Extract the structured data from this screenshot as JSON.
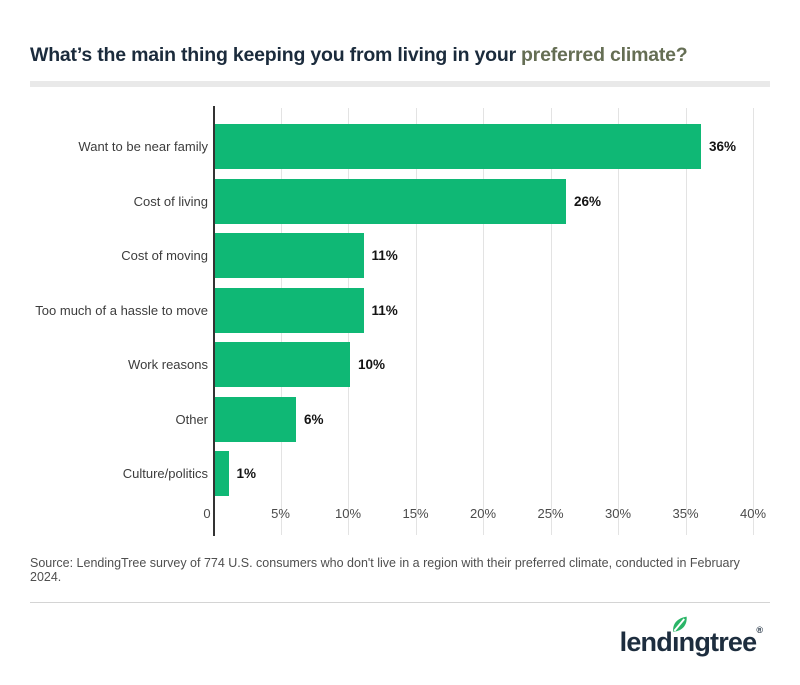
{
  "title": {
    "main": "What’s the main thing keeping you from living in your",
    "highlight": "preferred climate?"
  },
  "chart_data": {
    "type": "bar",
    "orientation": "horizontal",
    "title": "What’s the main thing keeping you from living in your preferred climate?",
    "categories": [
      "Want to be near family",
      "Cost of living",
      "Cost of moving",
      "Too much of a hassle to move",
      "Work reasons",
      "Other",
      "Culture/politics"
    ],
    "values": [
      36,
      26,
      11,
      11,
      10,
      6,
      1
    ],
    "value_labels": [
      "36%",
      "26%",
      "11%",
      "11%",
      "10%",
      "6%",
      "1%"
    ],
    "xticks": [
      "0",
      "5%",
      "10%",
      "15%",
      "20%",
      "25%",
      "30%",
      "35%",
      "40%"
    ],
    "xlim": [
      0,
      40
    ],
    "xlabel": "",
    "ylabel": "",
    "grid": true,
    "legend": false,
    "bar_color": "#0FB875"
  },
  "source": "Source: LendingTree survey of 774 U.S. consumers who don't live in a region with their preferred climate, conducted in February 2024.",
  "logo": {
    "part1": "lend",
    "dotless_i": "ı",
    "part2": "ngtree",
    "registered": "®",
    "leaf_icon": "leaf-icon"
  },
  "colors": {
    "title_navy": "#1B2B3C",
    "title_highlight": "#656E54",
    "bar_green": "#0FB875",
    "gridline": "#E3E3E3",
    "axis": "#333333",
    "title_underline": "#E9E9E9",
    "footer_divider": "#D4D4D4",
    "logo_navy": "#1D2D3E",
    "leaf_green": "#2AB567"
  }
}
